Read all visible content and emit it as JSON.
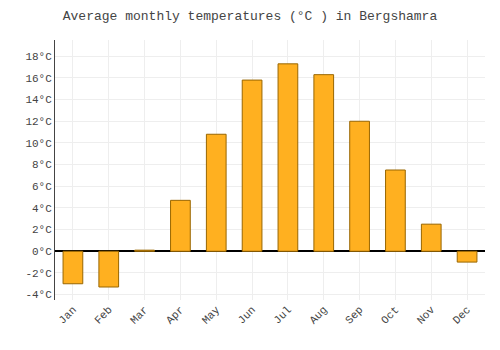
{
  "chart_data": {
    "type": "bar",
    "title": "Average monthly temperatures (°C ) in Bergshamra",
    "categories": [
      "Jan",
      "Feb",
      "Mar",
      "Apr",
      "May",
      "Jun",
      "Jul",
      "Aug",
      "Sep",
      "Oct",
      "Nov",
      "Dec"
    ],
    "values": [
      -3.0,
      -3.3,
      0.1,
      4.7,
      10.8,
      15.8,
      17.3,
      16.3,
      12.0,
      7.5,
      2.5,
      -1.0
    ],
    "color": "#FFB020",
    "ylim": [
      -4.5,
      19.5
    ],
    "yticks": [
      {
        "value": -4,
        "label": "-4°C"
      },
      {
        "value": -2,
        "label": "-2°C"
      },
      {
        "value": 0,
        "label": "0°C"
      },
      {
        "value": 2,
        "label": "2°C"
      },
      {
        "value": 4,
        "label": "4°C"
      },
      {
        "value": 6,
        "label": "6°C"
      },
      {
        "value": 8,
        "label": "8°C"
      },
      {
        "value": 10,
        "label": "10°C"
      },
      {
        "value": 12,
        "label": "12°C"
      },
      {
        "value": 14,
        "label": "14°C"
      },
      {
        "value": 16,
        "label": "16°C"
      },
      {
        "value": 18,
        "label": "18°C"
      }
    ],
    "grid": true
  }
}
